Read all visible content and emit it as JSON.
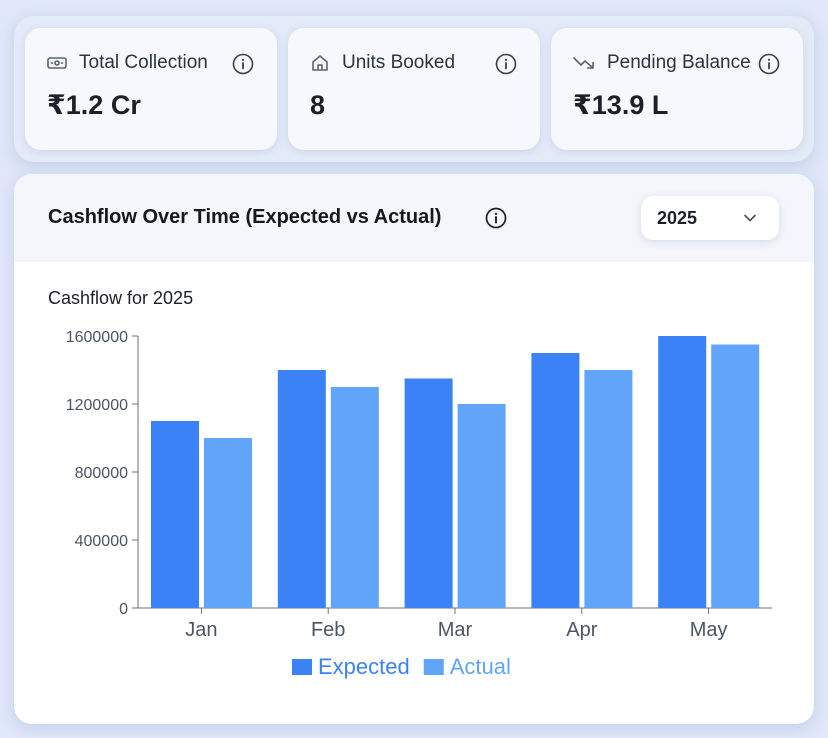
{
  "stats": [
    {
      "label": "Total Collection",
      "value": "₹1.2 Cr",
      "icon": "banknote-icon"
    },
    {
      "label": "Units Booked",
      "value": "8",
      "icon": "home-icon"
    },
    {
      "label": "Pending Balance",
      "value": "₹13.9 L",
      "icon": "trending-down-icon"
    }
  ],
  "chart_card": {
    "title": "Cashflow Over Time (Expected vs Actual)",
    "year_selected": "2025",
    "subtitle": "Cashflow for 2025"
  },
  "chart_data": {
    "type": "bar",
    "title": "Cashflow for 2025",
    "categories": [
      "Jan",
      "Feb",
      "Mar",
      "Apr",
      "May"
    ],
    "series": [
      {
        "name": "Expected",
        "values": [
          1100000,
          1400000,
          1350000,
          1500000,
          1600000
        ],
        "color": "#3b82f6"
      },
      {
        "name": "Actual",
        "values": [
          1000000,
          1300000,
          1200000,
          1400000,
          1550000
        ],
        "color": "#60a5fa"
      }
    ],
    "ylim": [
      0,
      1600000
    ],
    "yticks": [
      "0",
      "400000",
      "800000",
      "1200000",
      "1600000"
    ],
    "grid": false,
    "legend": "bottom"
  }
}
